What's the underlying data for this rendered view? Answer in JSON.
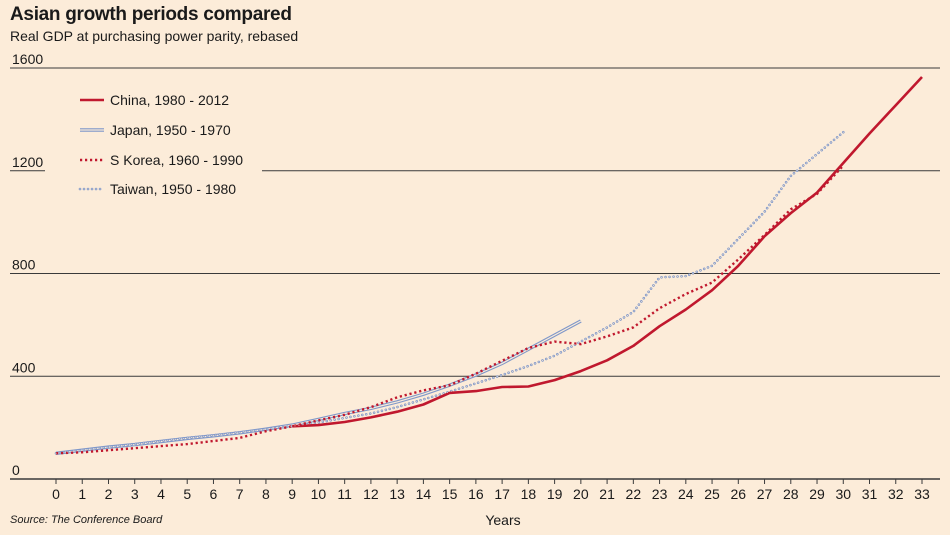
{
  "header": {
    "title": "Asian growth periods compared",
    "subtitle": "Real GDP at purchasing power parity, rebased"
  },
  "footer": {
    "source": "Source: The Conference Board"
  },
  "colors": {
    "background": "#fcecd9",
    "china": "#c0182e",
    "japan": "#7f97c9",
    "s_korea": "#c0182e",
    "taiwan": "#7f97c9",
    "grid": "#3a3a3a"
  },
  "chart_data": {
    "type": "line",
    "title": "Asian growth periods compared",
    "subtitle": "Real GDP at purchasing power parity, rebased",
    "xlabel": "Years",
    "ylabel": "",
    "xlim": [
      0,
      33
    ],
    "ylim": [
      0,
      1600
    ],
    "x_ticks": [
      "0",
      "1",
      "2",
      "3",
      "4",
      "5",
      "6",
      "7",
      "8",
      "9",
      "10",
      "11",
      "12",
      "13",
      "14",
      "15",
      "16",
      "17",
      "18",
      "19",
      "20",
      "21",
      "22",
      "23",
      "24",
      "25",
      "26",
      "27",
      "28",
      "29",
      "30",
      "31",
      "32",
      "33"
    ],
    "y_ticks": [
      "0",
      "400",
      "800",
      "1200",
      "1600"
    ],
    "grid": "horizontal",
    "legend_position": "top-left",
    "series": [
      {
        "name": "China, 1980 - 2012",
        "style": "solid",
        "x": [
          9,
          10,
          11,
          12,
          13,
          14,
          15,
          16,
          17,
          18,
          19,
          20,
          21,
          22,
          23,
          24,
          25,
          26,
          27,
          28,
          29,
          30,
          31,
          32,
          33
        ],
        "y": [
          205,
          210,
          222,
          240,
          262,
          290,
          335,
          342,
          358,
          360,
          385,
          420,
          462,
          518,
          595,
          660,
          735,
          830,
          945,
          1035,
          1115,
          1230,
          1345,
          1455,
          1565
        ]
      },
      {
        "name": "Japan, 1950 - 1970",
        "style": "double",
        "x": [
          0,
          1,
          2,
          3,
          4,
          5,
          6,
          7,
          8,
          9,
          10,
          11,
          12,
          13,
          14,
          15,
          16,
          17,
          18,
          19,
          20
        ],
        "y": [
          100,
          112,
          124,
          134,
          146,
          158,
          168,
          180,
          194,
          210,
          232,
          255,
          275,
          300,
          330,
          365,
          405,
          450,
          505,
          560,
          615
        ]
      },
      {
        "name": "S Korea, 1960 - 1990",
        "style": "dotted",
        "x": [
          0,
          1,
          2,
          3,
          4,
          5,
          6,
          7,
          8,
          9,
          10,
          11,
          12,
          13,
          14,
          15,
          16,
          17,
          18,
          19,
          20,
          21,
          22,
          23,
          24,
          25,
          26,
          27,
          28,
          29,
          30
        ],
        "y": [
          100,
          104,
          112,
          120,
          128,
          136,
          148,
          160,
          186,
          205,
          228,
          250,
          280,
          318,
          345,
          365,
          410,
          460,
          510,
          535,
          525,
          555,
          590,
          665,
          720,
          765,
          855,
          950,
          1050,
          1110,
          1220
        ]
      },
      {
        "name": "Taiwan, 1950 - 1980",
        "style": "circles",
        "x": [
          0,
          1,
          2,
          3,
          4,
          5,
          6,
          7,
          8,
          9,
          10,
          11,
          12,
          13,
          14,
          15,
          16,
          17,
          18,
          19,
          20,
          21,
          22,
          23,
          24,
          25,
          26,
          27,
          28,
          29,
          30
        ],
        "y": [
          100,
          112,
          124,
          136,
          148,
          160,
          170,
          182,
          194,
          205,
          220,
          238,
          255,
          280,
          310,
          340,
          372,
          405,
          440,
          480,
          535,
          590,
          650,
          785,
          790,
          830,
          935,
          1040,
          1180,
          1265,
          1350
        ]
      }
    ]
  }
}
